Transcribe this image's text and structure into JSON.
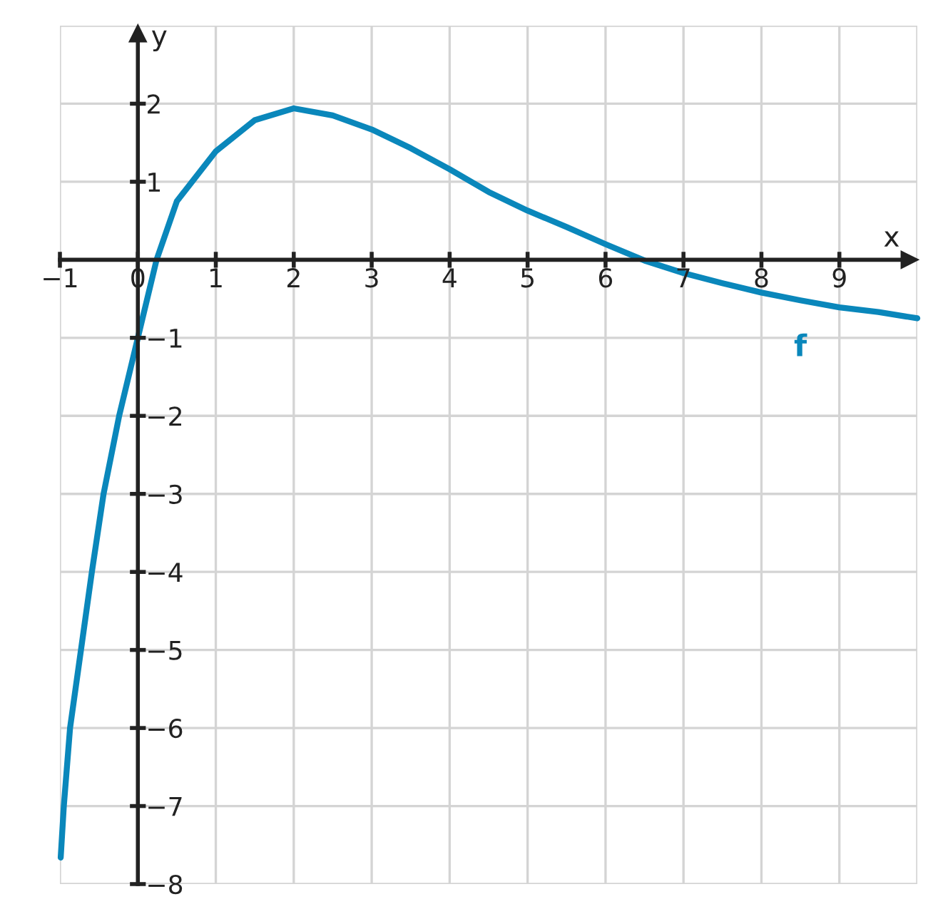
{
  "chart_data": {
    "type": "line",
    "xlabel": "x",
    "ylabel": "y",
    "series": [
      {
        "name": "f",
        "color": "#0a87bb",
        "x": [
          -0.99,
          -0.95,
          -0.87,
          -0.73,
          -0.59,
          -0.44,
          -0.24,
          0.0,
          0.24,
          0.5,
          1.0,
          1.5,
          2.0,
          2.5,
          3.0,
          3.5,
          4.0,
          4.5,
          5.0,
          5.5,
          6.0,
          6.5,
          7.0,
          7.5,
          8.0,
          8.5,
          9.0,
          9.5,
          10.0
        ],
        "values": [
          -7.66,
          -7,
          -6,
          -5,
          -4,
          -3,
          -2,
          -1,
          0,
          0.75,
          1.39,
          1.79,
          1.94,
          1.85,
          1.67,
          1.43,
          1.16,
          0.87,
          0.63,
          0.42,
          0.2,
          -0.01,
          -0.17,
          -0.3,
          -0.42,
          -0.52,
          -0.61,
          -0.67,
          -0.75
        ]
      }
    ],
    "xlim": [
      -1,
      10
    ],
    "ylim": [
      -8,
      3
    ],
    "xticks": [
      {
        "value": -1,
        "label": "−1"
      },
      {
        "value": 0,
        "label": "0"
      },
      1,
      2,
      3,
      4,
      5,
      6,
      7,
      8,
      9
    ],
    "yticks": [
      {
        "value": -8,
        "label": "−8"
      },
      {
        "value": -7,
        "label": "−7"
      },
      {
        "value": -6,
        "label": "−6"
      },
      {
        "value": -5,
        "label": "−5"
      },
      {
        "value": -4,
        "label": "−4"
      },
      {
        "value": -3,
        "label": "−3"
      },
      {
        "value": -2,
        "label": "−2"
      },
      {
        "value": -1,
        "label": "−1"
      },
      1,
      2
    ],
    "grid": true,
    "marker": "none",
    "line_style": "solid"
  }
}
